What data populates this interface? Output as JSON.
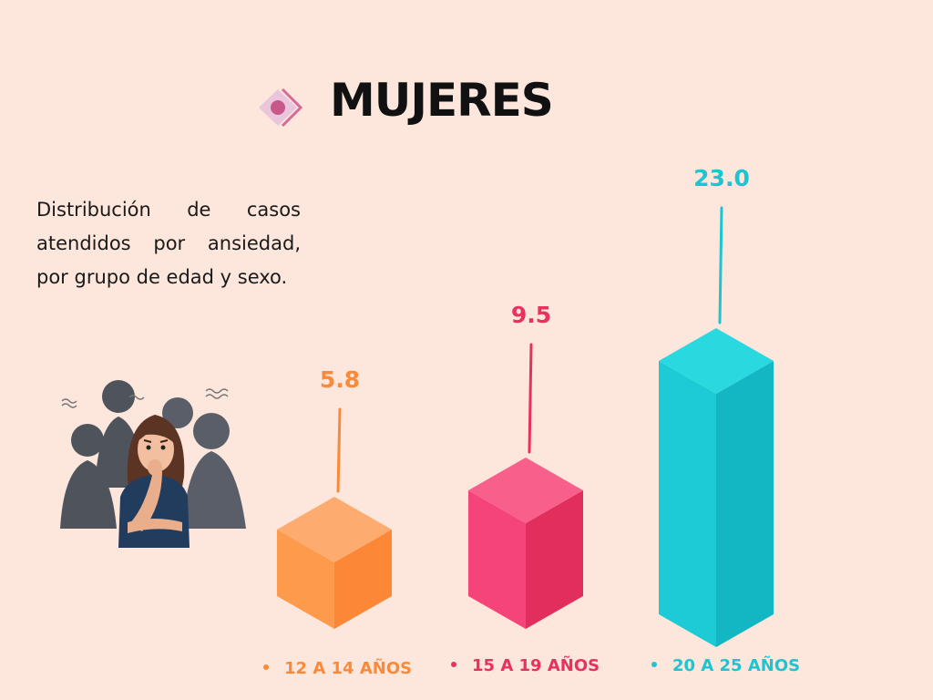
{
  "header": {
    "title": "MUJERES"
  },
  "description": "Distribución de casos atendidos por ansiedad, por grupo de edad y sexo.",
  "chart_data": {
    "type": "bar",
    "title": "MUJERES",
    "categories": [
      "12 A 14 AÑOS",
      "15 A 19 AÑOS",
      "20 A 25 AÑOS"
    ],
    "values": [
      5.8,
      9.5,
      23.0
    ],
    "value_labels": [
      "5.8",
      "9.5",
      "23.0"
    ],
    "colors": [
      "#f98a3a",
      "#e8315f",
      "#1cc5d0"
    ],
    "xlabel": "",
    "ylabel": "",
    "legend": "bottom",
    "style": "3d-isometric-bars"
  },
  "palette": {
    "background": "#fde6dc",
    "orange": {
      "front": "#fe9a4c",
      "side": "#fb8737",
      "top": "#fdab6f"
    },
    "pink": {
      "front": "#f4447a",
      "side": "#e22e5c",
      "top": "#f8608b"
    },
    "teal": {
      "front": "#1dcbd6",
      "side": "#13b7c3",
      "top": "#2ad8e0"
    }
  },
  "icons": {
    "title": "diamond-target-icon",
    "illustration": "anxious-woman-illustration"
  }
}
